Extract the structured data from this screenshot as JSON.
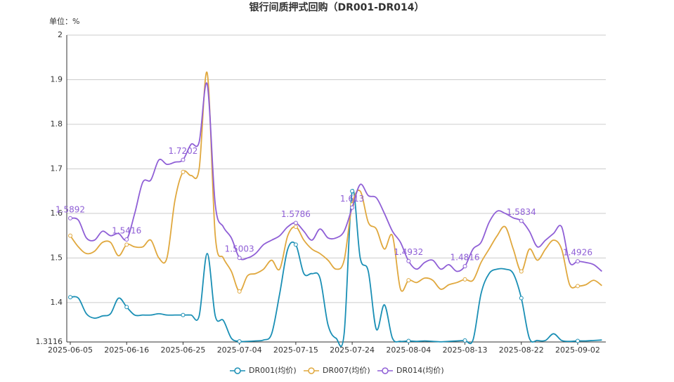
{
  "chart_data": {
    "type": "line",
    "title": "银行间质押式回购（DR001-DR014）",
    "y_unit": "单位：%",
    "categories": [
      "2025-06-05",
      null,
      null,
      null,
      null,
      null,
      null,
      "2025-06-16",
      null,
      null,
      null,
      null,
      null,
      null,
      "2025-06-25",
      null,
      null,
      null,
      null,
      null,
      null,
      "2025-07-04",
      null,
      null,
      null,
      null,
      null,
      null,
      "2025-07-15",
      null,
      null,
      null,
      null,
      null,
      null,
      "2025-07-24",
      null,
      null,
      null,
      null,
      null,
      null,
      "2025-08-04",
      null,
      null,
      null,
      null,
      null,
      null,
      "2025-08-13",
      null,
      null,
      null,
      null,
      null,
      null,
      "2025-08-22",
      null,
      null,
      null,
      null,
      null,
      null,
      "2025-09-02",
      null,
      null,
      null
    ],
    "series": [
      {
        "name": "DR001(均价)",
        "color": "#1a8fb5",
        "values": [
          1.412,
          1.41,
          1.375,
          1.365,
          1.37,
          1.375,
          1.41,
          1.39,
          1.372,
          1.372,
          1.372,
          1.375,
          1.372,
          1.372,
          1.372,
          1.372,
          1.37,
          1.51,
          1.37,
          1.36,
          1.32,
          1.313,
          1.313,
          1.314,
          1.316,
          1.33,
          1.42,
          1.52,
          1.53,
          1.465,
          1.465,
          1.455,
          1.35,
          1.32,
          1.33,
          1.65,
          1.5,
          1.47,
          1.34,
          1.395,
          1.32,
          1.313,
          1.314,
          1.313,
          1.314,
          1.313,
          1.312,
          1.313,
          1.314,
          1.315,
          1.316,
          1.42,
          1.465,
          1.475,
          1.475,
          1.465,
          1.41,
          1.32,
          1.315,
          1.315,
          1.33,
          1.315,
          1.313,
          1.314,
          1.314,
          1.315,
          1.316
        ]
      },
      {
        "name": "DR007(均价)",
        "color": "#e0a83e",
        "values": [
          1.55,
          1.525,
          1.51,
          1.515,
          1.535,
          1.535,
          1.505,
          1.53,
          1.525,
          1.525,
          1.54,
          1.5,
          1.5,
          1.63,
          1.693,
          1.685,
          1.7,
          1.915,
          1.55,
          1.5,
          1.47,
          1.425,
          1.46,
          1.465,
          1.475,
          1.495,
          1.475,
          1.55,
          1.57,
          1.54,
          1.52,
          1.51,
          1.495,
          1.475,
          1.495,
          1.62,
          1.65,
          1.58,
          1.565,
          1.52,
          1.55,
          1.43,
          1.45,
          1.445,
          1.455,
          1.45,
          1.43,
          1.44,
          1.445,
          1.452,
          1.45,
          1.49,
          1.52,
          1.55,
          1.57,
          1.52,
          1.47,
          1.52,
          1.495,
          1.52,
          1.54,
          1.52,
          1.44,
          1.437,
          1.44,
          1.45,
          1.438
        ]
      },
      {
        "name": "DR014(均价)",
        "color": "#8f5fd6",
        "values": [
          1.5892,
          1.585,
          1.545,
          1.54,
          1.56,
          1.55,
          1.555,
          1.5416,
          1.6,
          1.67,
          1.675,
          1.72,
          1.71,
          1.715,
          1.7202,
          1.755,
          1.76,
          1.89,
          1.62,
          1.57,
          1.545,
          1.5003,
          1.5,
          1.51,
          1.53,
          1.54,
          1.55,
          1.57,
          1.5786,
          1.56,
          1.54,
          1.565,
          1.545,
          1.545,
          1.56,
          1.613,
          1.665,
          1.64,
          1.635,
          1.6,
          1.56,
          1.535,
          1.4932,
          1.475,
          1.49,
          1.495,
          1.475,
          1.485,
          1.47,
          1.4816,
          1.52,
          1.535,
          1.58,
          1.605,
          1.6,
          1.59,
          1.5834,
          1.56,
          1.525,
          1.54,
          1.555,
          1.57,
          1.49,
          1.4926,
          1.49,
          1.485,
          1.47
        ]
      }
    ],
    "ylim": [
      1.3116,
      2
    ],
    "yticks": [
      1.3116,
      1.4,
      1.5,
      1.6,
      1.7,
      1.8,
      1.9,
      2
    ],
    "grid": true,
    "legend": "bottom"
  }
}
